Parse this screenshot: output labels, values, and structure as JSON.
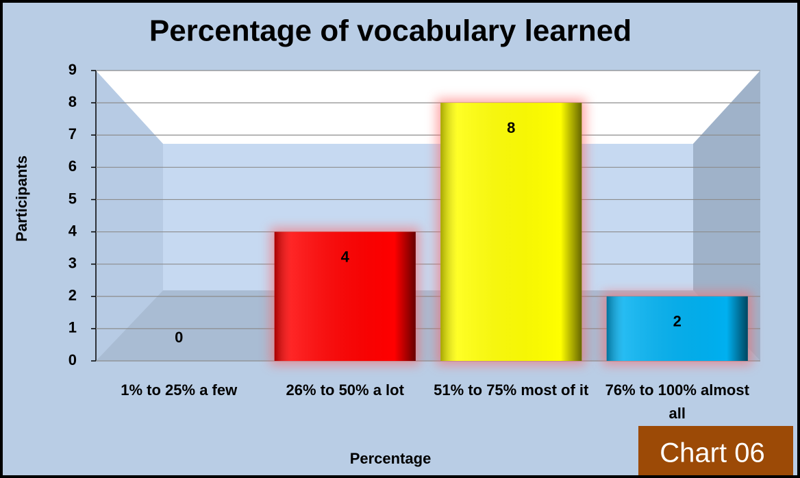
{
  "chart_data": {
    "type": "bar",
    "title": "Percentage of vocabulary learned",
    "categories": [
      "1% to 25% a few",
      "26% to 50% a lot",
      "51% to 75% most of it",
      "76% to 100% almost all"
    ],
    "values": [
      0,
      4,
      8,
      2
    ],
    "colors": [
      "#a0a0a0",
      "#ff0000",
      "#ffff00",
      "#00b0f0"
    ],
    "ylim": [
      0,
      9
    ],
    "yticks": [
      0,
      1,
      2,
      3,
      4,
      5,
      6,
      7,
      8,
      9
    ],
    "grid": true,
    "x_label": "Percentage",
    "y_label": "Participants",
    "badge": "Chart 06"
  }
}
